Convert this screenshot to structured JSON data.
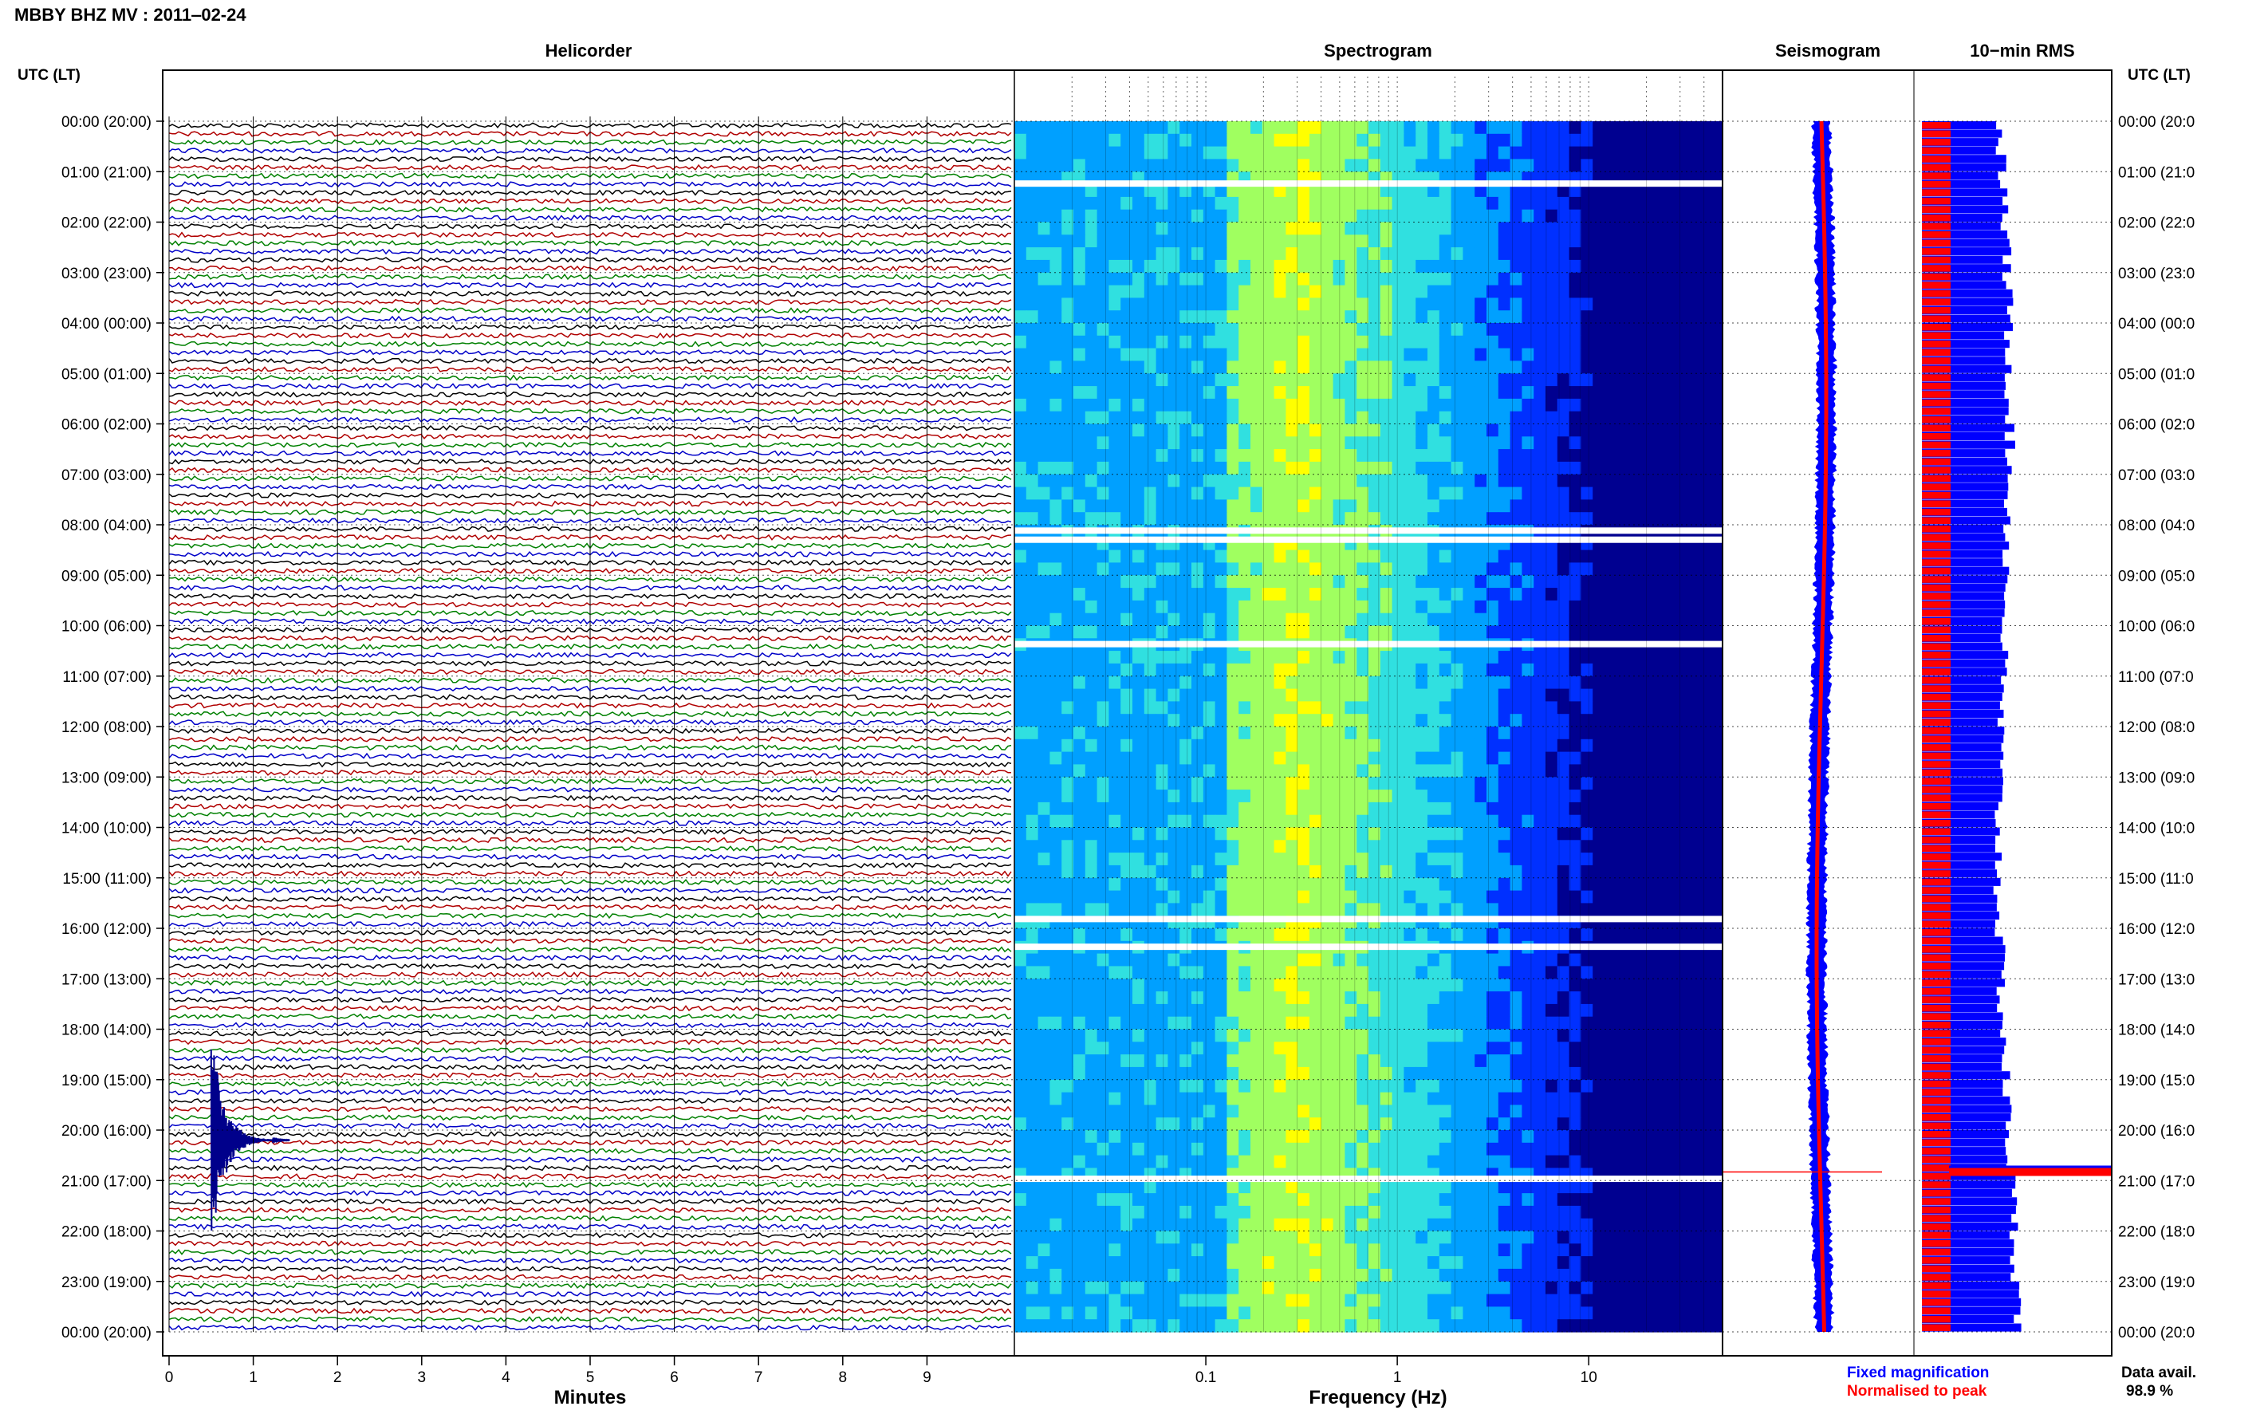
{
  "header": {
    "title": "MBBY BHZ MV : 2011‒02‑24",
    "time_label_left": "UTC (LT)",
    "time_label_right": "UTC (LT)"
  },
  "panels": {
    "helicorder": "Helicorder",
    "spectrogram": "Spectrogram",
    "seismogram": "Seismogram",
    "rms": "10−min RMS"
  },
  "axes": {
    "minutes_label": "Minutes",
    "frequency_label": "Frequency (Hz)"
  },
  "legend": {
    "fixed": "Fixed magnification",
    "normalised": "Normalised to peak",
    "fixed_color": "#0000ff",
    "normalised_color": "#ff0000"
  },
  "data_availability": {
    "label": "Data avail.",
    "value": "98.9 %"
  },
  "chart_data": [
    {
      "type": "line",
      "name": "helicorder",
      "x_ticks": [
        "0",
        "1",
        "2",
        "3",
        "4",
        "5",
        "6",
        "7",
        "8",
        "9"
      ],
      "xlim": [
        0,
        10
      ],
      "xlabel": "Minutes",
      "trace_colors": [
        "#000000",
        "#b00000",
        "#008000",
        "#0000c8"
      ],
      "rows_per_hour": 6,
      "y_tick_labels": [
        "00:00 (20:00)",
        "01:00 (21:00)",
        "02:00 (22:00)",
        "03:00 (23:00)",
        "04:00 (00:00)",
        "05:00 (01:00)",
        "06:00 (02:00)",
        "07:00 (03:00)",
        "08:00 (04:00)",
        "09:00 (05:00)",
        "10:00 (06:00)",
        "11:00 (07:00)",
        "12:00 (08:00)",
        "13:00 (09:00)",
        "14:00 (10:00)",
        "15:00 (11:00)",
        "16:00 (12:00)",
        "17:00 (13:00)",
        "18:00 (14:00)",
        "19:00 (15:00)",
        "20:00 (16:00)",
        "21:00 (17:00)",
        "22:00 (18:00)",
        "23:00 (19:00)",
        "00:00 (20:00)"
      ],
      "y_tick_labels_right": [
        "00:00 (20:0",
        "01:00 (21:0",
        "02:00 (22:0",
        "03:00 (23:0",
        "04:00 (00:0",
        "05:00 (01:0",
        "06:00 (02:0",
        "07:00 (03:0",
        "08:00 (04:0",
        "09:00 (05:0",
        "10:00 (06:0",
        "11:00 (07:0",
        "12:00 (08:0",
        "13:00 (09:0",
        "14:00 (10:0",
        "15:00 (11:0",
        "16:00 (12:0",
        "17:00 (13:0",
        "18:00 (14:0",
        "19:00 (15:0",
        "20:00 (16:0",
        "21:00 (17:0",
        "22:00 (18:0",
        "23:00 (19:0",
        "00:00 (20:0"
      ],
      "event": {
        "hour": 20.2,
        "minute": 0.5,
        "color": "#00008b"
      }
    },
    {
      "type": "heatmap",
      "name": "spectrogram",
      "x_scale": "log",
      "xlim": [
        0.01,
        50
      ],
      "x_ticks": [
        "0.1",
        "1",
        "10"
      ],
      "x_tick_values": [
        0.1,
        1,
        10
      ],
      "xlabel": "Frequency (Hz)",
      "colormap": [
        "#000090",
        "#0030ff",
        "#00a0ff",
        "#30e0e0",
        "#a0ff60",
        "#ffff00"
      ],
      "gap_hours": [
        1.22,
        8.1,
        8.28,
        10.35,
        15.8,
        16.35,
        20.95
      ]
    },
    {
      "type": "line",
      "name": "seismogram",
      "series": [
        {
          "name": "Fixed magnification",
          "color": "#0000ff"
        },
        {
          "name": "Normalised to peak",
          "color": "#ff0000"
        }
      ],
      "event_hour": 20.83
    },
    {
      "type": "bar",
      "name": "10-min RMS",
      "series": [
        {
          "name": "Fixed magnification",
          "color": "#0000ff"
        },
        {
          "name": "Normalised to peak",
          "color": "#ff0000"
        }
      ],
      "peak_hour": 20.83
    }
  ]
}
